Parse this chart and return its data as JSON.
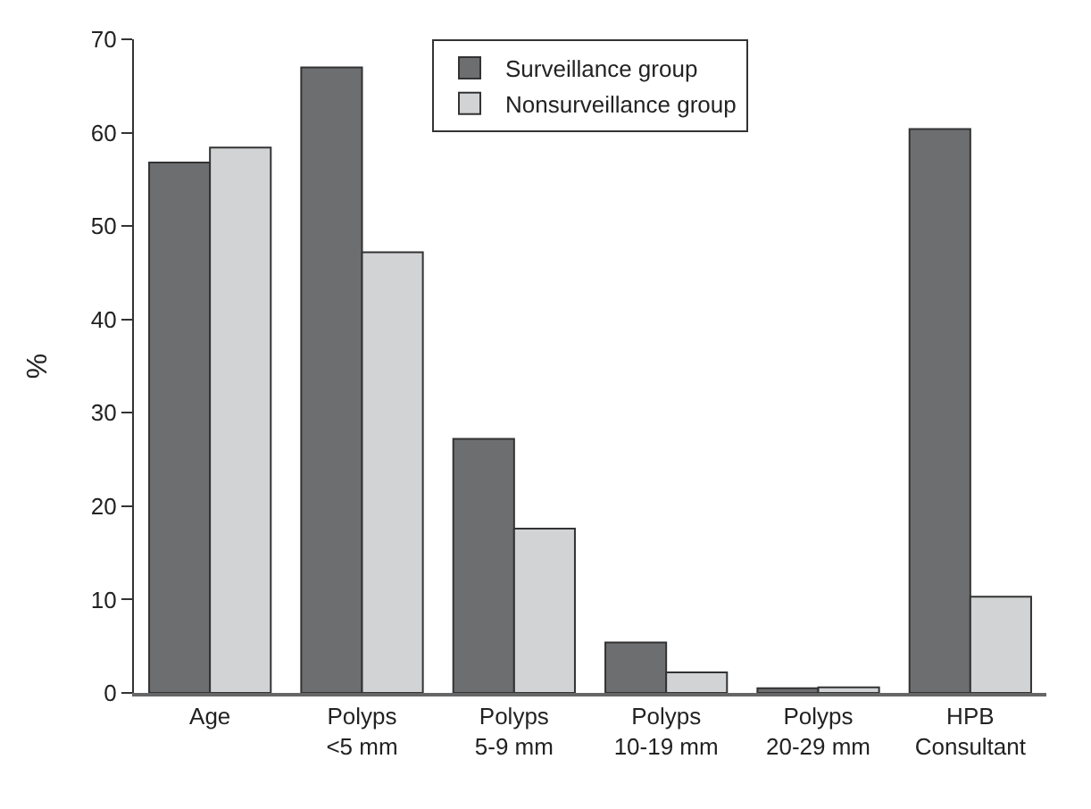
{
  "chart_data": {
    "type": "bar",
    "ylabel": "%",
    "categories": [
      "Age",
      "Polyps\n<5 mm",
      "Polyps\n5-9 mm",
      "Polyps\n10-19 mm",
      "Polyps\n20-29 mm",
      "HPB\nConsultant"
    ],
    "series": [
      {
        "name": "Surveillance group",
        "color": "#6d6e70",
        "values": [
          56.8,
          67.0,
          27.2,
          5.4,
          0.5,
          60.4
        ]
      },
      {
        "name": "Nonsurveillance group",
        "color": "#d2d3d5",
        "values": [
          58.4,
          47.2,
          17.6,
          2.2,
          0.6,
          10.3
        ]
      }
    ],
    "ylim": [
      0,
      70
    ],
    "yticks": [
      0,
      10,
      20,
      30,
      40,
      50,
      60,
      70
    ],
    "grid": false,
    "legend": "top"
  }
}
